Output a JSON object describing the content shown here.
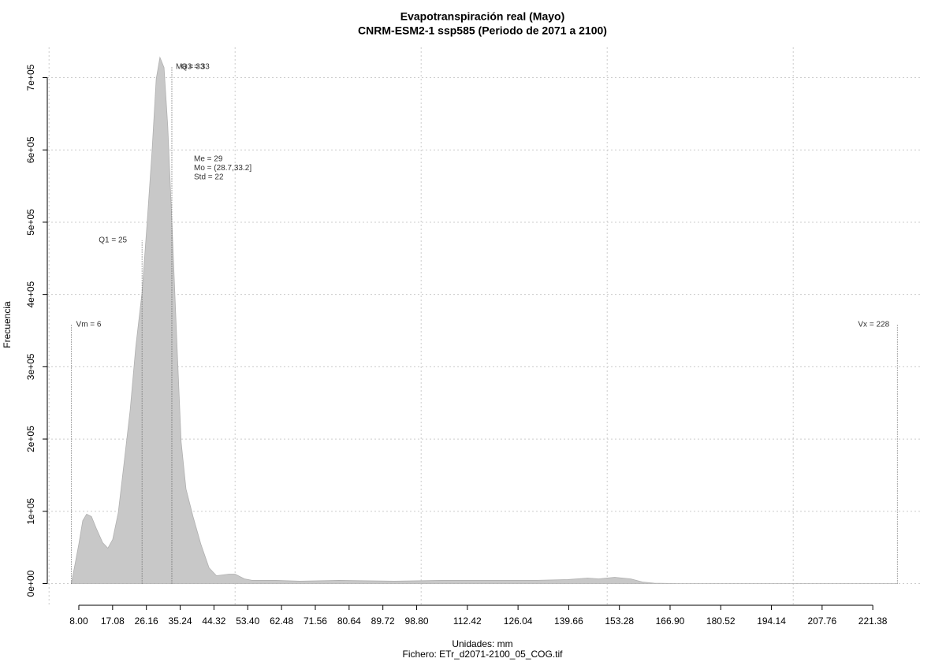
{
  "chart_data": {
    "type": "area",
    "title": "Evapotranspiración real (Mayo)",
    "subtitle": "CNRM-ESM2-1 ssp585 (Periodo de 2071 a 2100)",
    "x_label": "Unidades: mm",
    "caption": "Fichero: ETr_d2071-2100_05_COG.tif",
    "y_label": "Frecuencia",
    "color": "#c8c8c8",
    "grid": true,
    "x": [
      6,
      8,
      9.06,
      10.1,
      11.4,
      12.7,
      14.4,
      15.8,
      17.1,
      18.6,
      20.1,
      21.8,
      23.3,
      25,
      26.4,
      27.7,
      28.8,
      29.8,
      30.9,
      31.9,
      33,
      34.5,
      35.5,
      36.8,
      38.7,
      40.8,
      43,
      45,
      48.3,
      50,
      52.5,
      54.6,
      61,
      67.3,
      77.9,
      92.7,
      105.4,
      118.2,
      130.9,
      139.4,
      144.7,
      147.8,
      152,
      156.3,
      159.5,
      162.7,
      169,
      228
    ],
    "values": [
      0,
      54500,
      87000,
      96000,
      92700,
      76300,
      56700,
      49000,
      61000,
      98000,
      164000,
      240000,
      327000,
      403000,
      502000,
      600000,
      698000,
      728000,
      714000,
      633000,
      502000,
      316000,
      196000,
      131000,
      92700,
      54500,
      21800,
      10900,
      13100,
      13100,
      6500,
      4400,
      4400,
      3300,
      4400,
      3300,
      4400,
      4400,
      4400,
      5500,
      7600,
      6500,
      8700,
      6500,
      2200,
      500,
      0,
      0
    ],
    "xlim": [
      -0.47,
      234.7
    ],
    "ylim": [
      -30000,
      742000
    ],
    "xticks": [
      {
        "value": 8,
        "label": "8.00"
      },
      17.08,
      26.16,
      35.24,
      44.32,
      {
        "value": 53.4,
        "label": "53.40"
      },
      62.48,
      71.56,
      80.64,
      89.72,
      {
        "value": 98.8,
        "label": "98.80"
      },
      112.42,
      126.04,
      139.66,
      153.28,
      {
        "value": 166.9,
        "label": "166.90"
      },
      180.52,
      194.14,
      207.76,
      221.38
    ],
    "xgrid": [
      0,
      50,
      100,
      150,
      200
    ],
    "yticks": [
      {
        "value": 0,
        "label": "0e+00"
      },
      {
        "value": 100000,
        "label": "1e+05"
      },
      {
        "value": 200000,
        "label": "2e+05"
      },
      {
        "value": 300000,
        "label": "3e+05"
      },
      {
        "value": 400000,
        "label": "4e+05"
      },
      {
        "value": 500000,
        "label": "5e+05"
      },
      {
        "value": 600000,
        "label": "6e+05"
      },
      {
        "value": 700000,
        "label": "7e+05"
      }
    ],
    "markers": [
      {
        "label": "Vm = 6",
        "x": 6
      },
      {
        "label": "Q1 = 25",
        "x": 25
      },
      {
        "label": "Q3 = 33",
        "x": 33
      },
      {
        "label": "Ma = 33",
        "x": 33
      },
      {
        "label": "Vx = 228",
        "x": 228
      }
    ],
    "stats": [
      "Me = 29",
      "Mo = (28.7,33.2]",
      "Std = 22"
    ]
  }
}
